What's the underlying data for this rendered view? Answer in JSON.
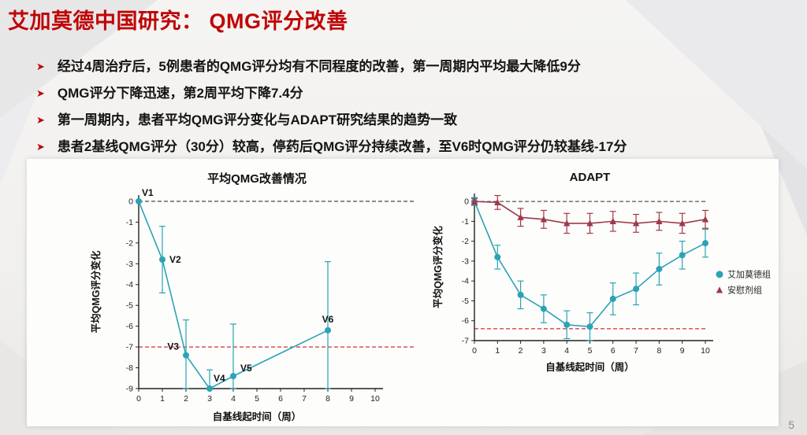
{
  "page": {
    "title": "艾加莫德中国研究： QMG评分改善",
    "page_number": "5"
  },
  "bullets": [
    {
      "text": "经过4周治疗后，5例患者的QMG评分均有不同程度的改善，第一周期内平均最大降低",
      "bold": "9分"
    },
    {
      "text": "QMG评分下降迅速，第2周平均下降",
      "bold": "7.4分"
    },
    {
      "text": "第一周期内，患者平均QMG评分变化与ADAPT研究结果的趋势一致",
      "bold": ""
    },
    {
      "text": "患者2基线QMG评分（30分）较高，停药后QMG评分持续改善，至V6时QMG评分仍较基线",
      "bold": "-17分"
    }
  ],
  "chart_data": [
    {
      "type": "line",
      "title": "平均QMG改善情况",
      "xlabel": "自基线起时间（周）",
      "ylabel": "平均QMG评分变化",
      "xlim": [
        0,
        10
      ],
      "ylim": [
        -9,
        0.3
      ],
      "grid": false,
      "color": "#2ba3b5",
      "x": [
        0,
        1,
        2,
        3,
        4,
        8
      ],
      "y": [
        0,
        -2.8,
        -7.4,
        -9,
        -8.4,
        -6.2
      ],
      "error": [
        0,
        1.6,
        1.7,
        0.9,
        2.5,
        3.3
      ],
      "point_labels": [
        "V1",
        "V2",
        "V3",
        "V4",
        "V5",
        "V6"
      ],
      "label_offsets": [
        [
          4,
          -7,
          "start"
        ],
        [
          9,
          4,
          "start"
        ],
        [
          -9,
          -7,
          "end"
        ],
        [
          5,
          -9,
          "start"
        ],
        [
          9,
          -6,
          "start"
        ],
        [
          0,
          -10,
          "middle"
        ]
      ],
      "reference_lines": [
        {
          "y": 0,
          "color": "#333333",
          "extend": true
        },
        {
          "y": -7,
          "color": "#d03030",
          "extend": true
        }
      ]
    },
    {
      "type": "line",
      "title": "ADAPT",
      "xlabel": "自基线起时间（周）",
      "ylabel": "平均QMG评分变化",
      "xlim": [
        0,
        10
      ],
      "ylim": [
        -7,
        0.4
      ],
      "grid": false,
      "legend_position": "right",
      "series": [
        {
          "name": "艾加莫德组",
          "color": "#2ba3b5",
          "marker": "circle",
          "x": [
            0,
            1,
            2,
            3,
            4,
            5,
            6,
            7,
            8,
            9,
            10
          ],
          "y": [
            0,
            -2.8,
            -4.7,
            -5.4,
            -6.2,
            -6.3,
            -4.9,
            -4.4,
            -3.4,
            -2.7,
            -2.1
          ],
          "error": [
            0.2,
            0.6,
            0.7,
            0.7,
            0.7,
            0.7,
            0.8,
            0.8,
            0.8,
            0.7,
            0.7
          ]
        },
        {
          "name": "安慰剂组",
          "color": "#a03848",
          "marker": "triangle",
          "x": [
            0,
            1,
            2,
            3,
            4,
            5,
            6,
            7,
            8,
            9,
            10
          ],
          "y": [
            0,
            -0.05,
            -0.8,
            -0.9,
            -1.1,
            -1.1,
            -1.0,
            -1.1,
            -1.0,
            -1.1,
            -0.9
          ],
          "error": [
            0.15,
            0.35,
            0.45,
            0.45,
            0.5,
            0.5,
            0.5,
            0.45,
            0.45,
            0.5,
            0.45
          ]
        }
      ],
      "reference_lines": [
        {
          "y": 0,
          "color": "#555555"
        },
        {
          "y": -6.4,
          "color": "#d03030"
        }
      ]
    }
  ]
}
